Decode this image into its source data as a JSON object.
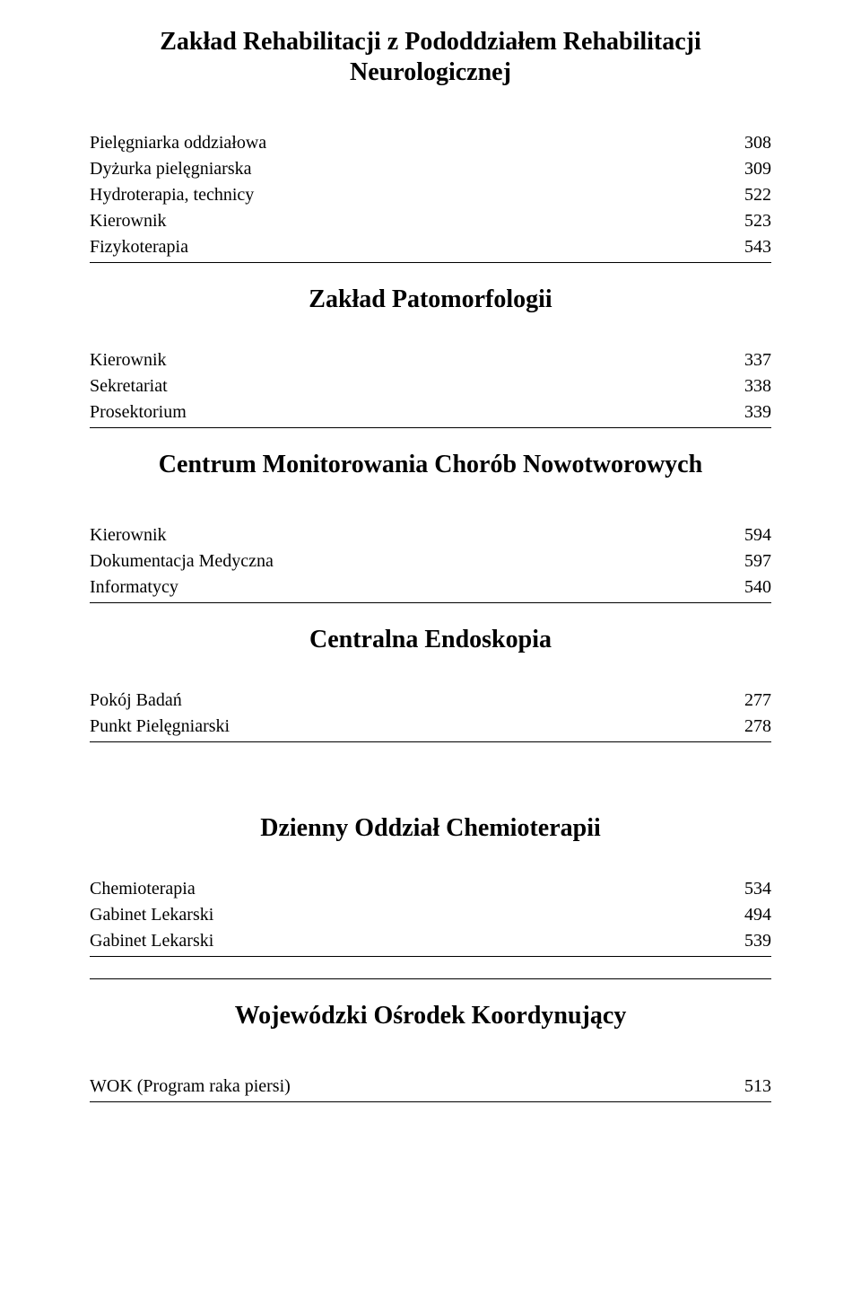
{
  "sections": {
    "rehab": {
      "title": "Zakład Rehabilitacji z Pododdziałem Rehabilitacji Neurologicznej",
      "rows": [
        {
          "label": "Pielęgniarka oddziałowa",
          "value": "308"
        },
        {
          "label": "Dyżurka pielęgniarska",
          "value": "309"
        },
        {
          "label": "Hydroterapia, technicy",
          "value": "522"
        },
        {
          "label": "Kierownik",
          "value": "523"
        },
        {
          "label": "Fizykoterapia",
          "value": "543"
        }
      ]
    },
    "pato": {
      "title": "Zakład Patomorfologii",
      "rows": [
        {
          "label": "Kierownik",
          "value": "337"
        },
        {
          "label": "Sekretariat",
          "value": "338"
        },
        {
          "label": "Prosektorium",
          "value": "339"
        }
      ]
    },
    "centrum": {
      "title": "Centrum Monitorowania Chorób Nowotworowych",
      "rows": [
        {
          "label": "Kierownik",
          "value": "594"
        },
        {
          "label": "Dokumentacja Medyczna",
          "value": "597"
        },
        {
          "label": "Informatycy",
          "value": "540"
        }
      ]
    },
    "endo": {
      "title": "Centralna Endoskopia",
      "rows": [
        {
          "label": "Pokój Badań",
          "value": "277"
        },
        {
          "label": "Punkt Pielęgniarski",
          "value": "278"
        }
      ]
    },
    "chemio": {
      "title": "Dzienny Oddział Chemioterapii",
      "rows": [
        {
          "label": "Chemioterapia",
          "value": "534"
        },
        {
          "label": "Gabinet Lekarski",
          "value": "494"
        },
        {
          "label": "Gabinet Lekarski",
          "value": "539"
        }
      ]
    },
    "wok": {
      "title": "Wojewódzki Ośrodek Koordynujący",
      "rows": [
        {
          "label": "WOK  (Program raka piersi)",
          "value": "513"
        }
      ]
    }
  }
}
